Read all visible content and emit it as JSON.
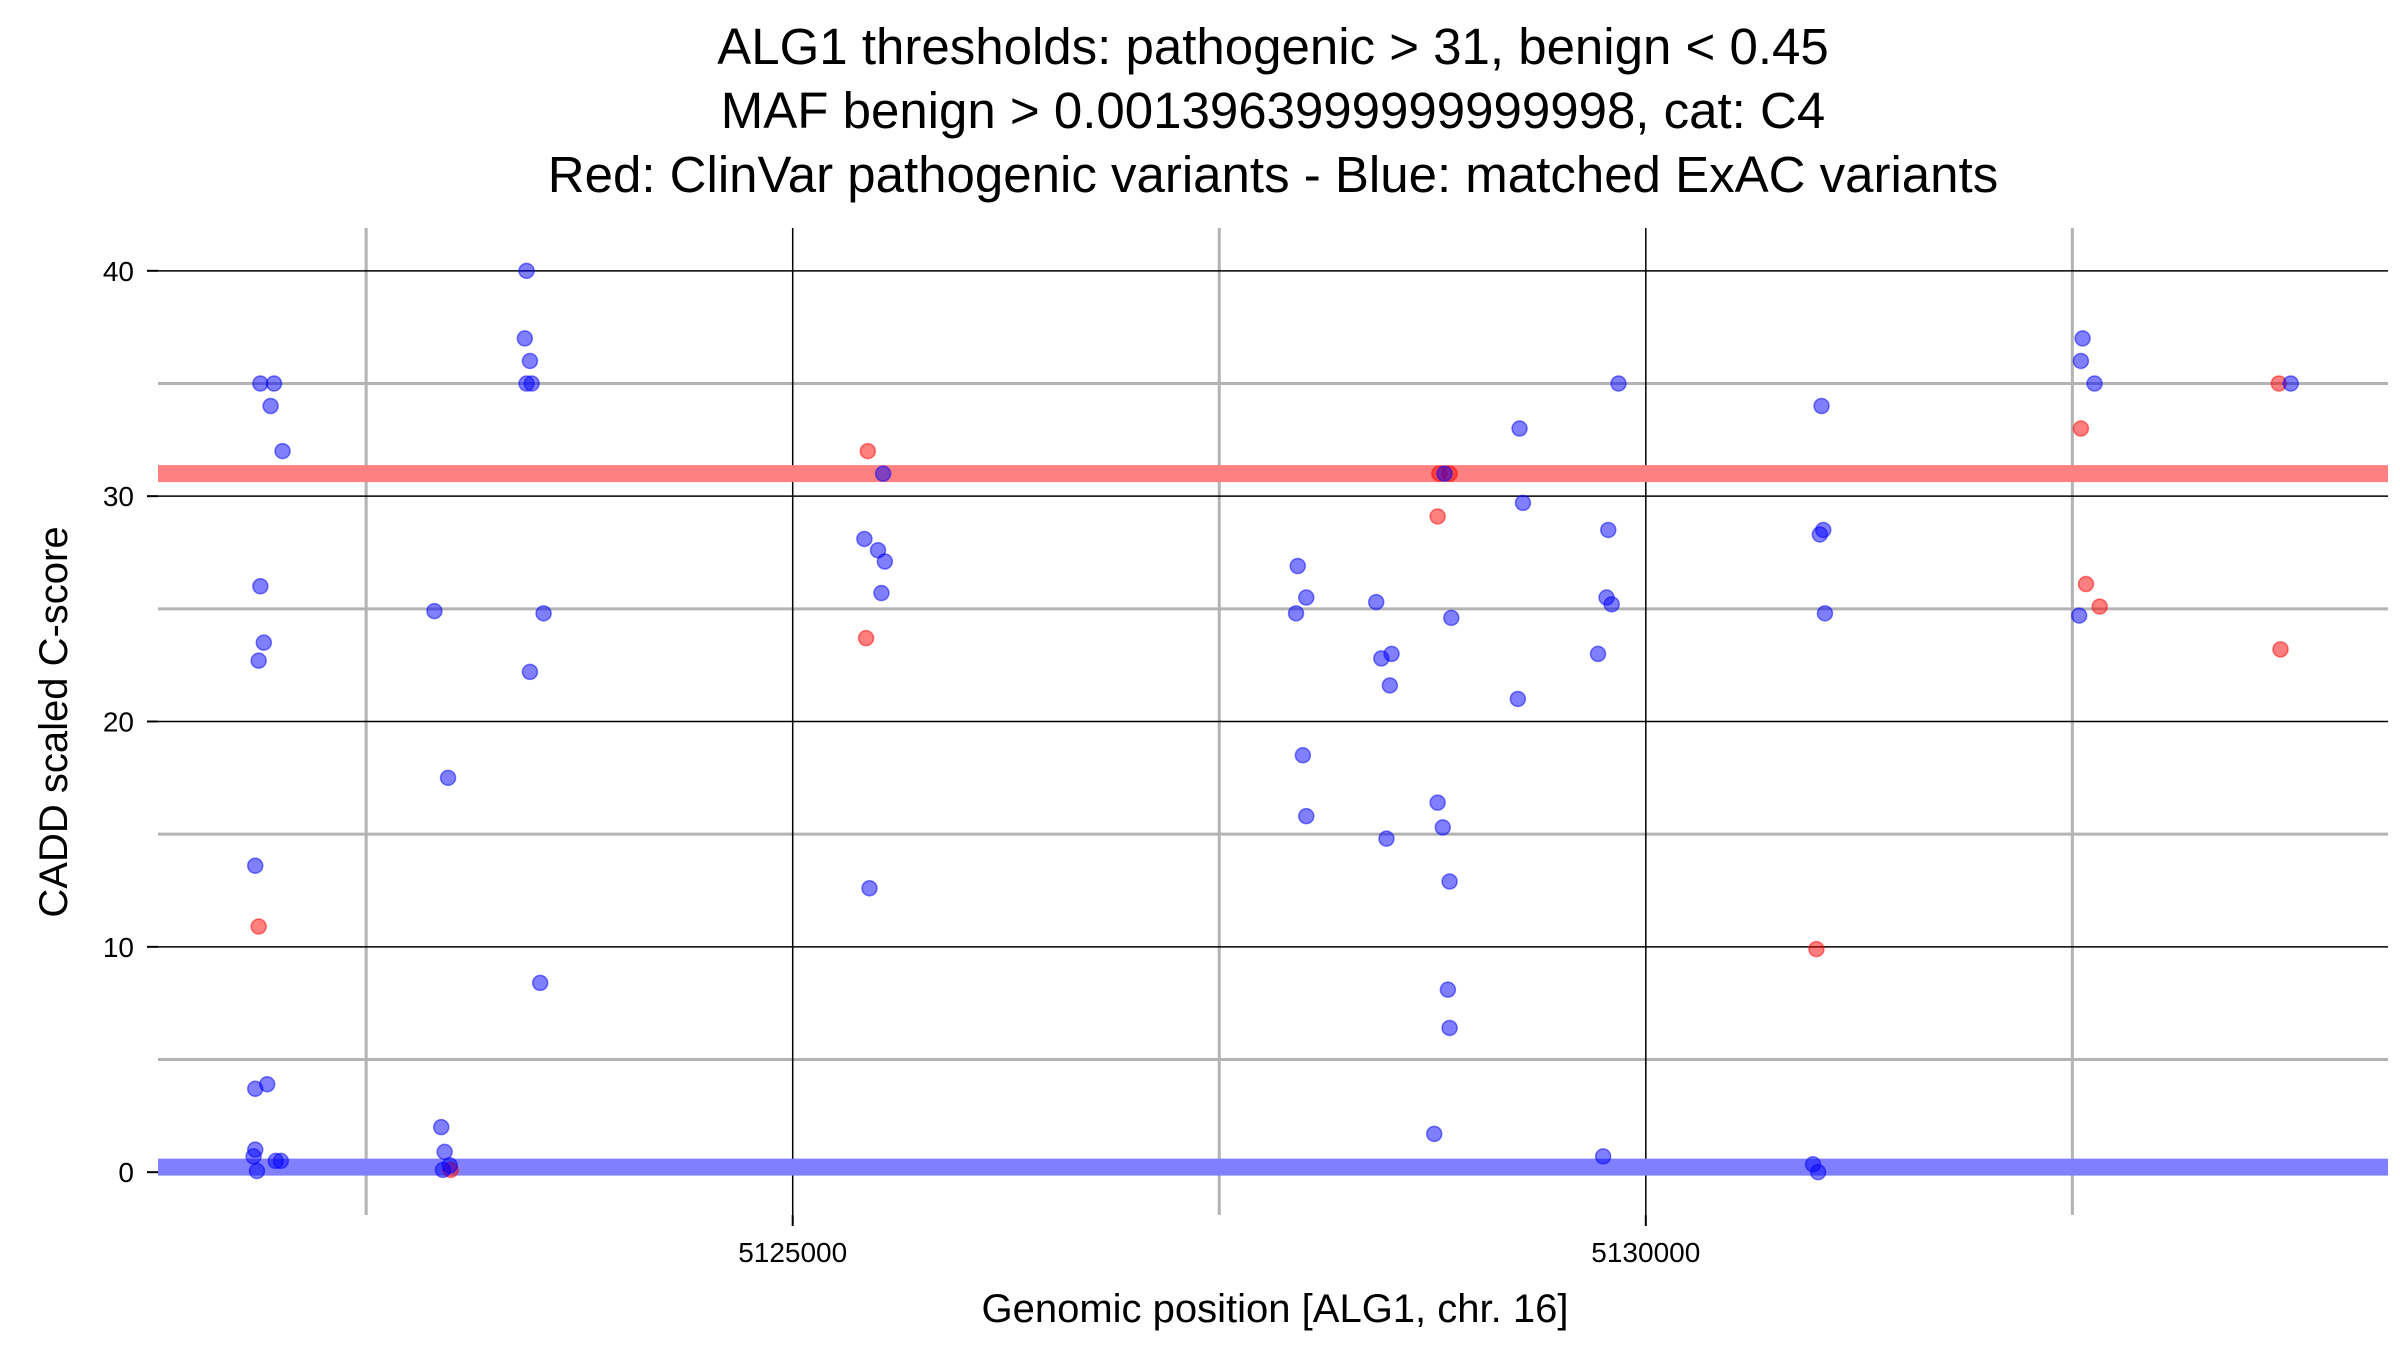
{
  "chart_data": {
    "type": "scatter",
    "title": [
      "ALG1 thresholds: pathogenic > 31, benign < 0.45",
      "MAF benign > 0.0013963999999999998, cat: C4",
      "Red: ClinVar pathogenic variants - Blue: matched ExAC variants"
    ],
    "xlabel": "Genomic position [ALG1, chr. 16]",
    "ylabel": "CADD scaled C-score",
    "xlim": [
      5121280,
      5134350
    ],
    "ylim": [
      -1.9,
      41.9
    ],
    "x_ticks": [
      5125000,
      5130000
    ],
    "x_tick_labels": [
      "5125000",
      "5130000"
    ],
    "x_minor_gridlines": [
      5122500,
      5127500,
      5132500
    ],
    "y_ticks": [
      0,
      10,
      20,
      30,
      40
    ],
    "y_tick_labels": [
      "0",
      "10",
      "20",
      "30",
      "40"
    ],
    "y_minor_gridlines": [
      5,
      15,
      25,
      35
    ],
    "grid": true,
    "colors": {
      "pathogenic": "#ff0000",
      "benign": "#0000ff",
      "threshold_pathogenic": "#ff8080",
      "threshold_benign": "#8080ff",
      "major_grid": "#000000",
      "minor_grid": "#b3b3b3"
    },
    "thresholds": {
      "pathogenic": 31,
      "benign": 0.45
    },
    "series": [
      {
        "name": "ClinVar pathogenic variants",
        "color": "#ff0000",
        "points": [
          [
            5121870,
            10.9
          ],
          [
            5122995,
            0.1
          ],
          [
            5125440,
            32.0
          ],
          [
            5125430,
            23.7
          ],
          [
            5128780,
            29.1
          ],
          [
            5128790,
            31.0
          ],
          [
            5128850,
            31.0
          ],
          [
            5131000,
            9.9
          ],
          [
            5132550,
            33.0
          ],
          [
            5132580,
            26.1
          ],
          [
            5132660,
            25.1
          ],
          [
            5133710,
            35.0
          ],
          [
            5133720,
            23.2
          ]
        ]
      },
      {
        "name": "matched ExAC variants",
        "color": "#0000ff",
        "points": [
          [
            5121880,
            35.0
          ],
          [
            5121960,
            35.0
          ],
          [
            5121940,
            34.0
          ],
          [
            5122010,
            32.0
          ],
          [
            5121880,
            26.0
          ],
          [
            5121900,
            23.5
          ],
          [
            5121870,
            22.7
          ],
          [
            5121850,
            13.6
          ],
          [
            5121920,
            3.9
          ],
          [
            5121850,
            3.7
          ],
          [
            5121850,
            1.0
          ],
          [
            5121840,
            0.7
          ],
          [
            5121860,
            0.05
          ],
          [
            5121970,
            0.5
          ],
          [
            5122000,
            0.5
          ],
          [
            5123440,
            40.0
          ],
          [
            5123430,
            37.0
          ],
          [
            5123460,
            36.0
          ],
          [
            5123440,
            35.0
          ],
          [
            5123470,
            35.0
          ],
          [
            5122900,
            24.9
          ],
          [
            5123540,
            24.8
          ],
          [
            5123460,
            22.2
          ],
          [
            5122980,
            17.5
          ],
          [
            5123520,
            8.4
          ],
          [
            5122940,
            2.0
          ],
          [
            5122960,
            0.9
          ],
          [
            5122990,
            0.3
          ],
          [
            5122950,
            0.1
          ],
          [
            5125530,
            31.0
          ],
          [
            5125420,
            28.1
          ],
          [
            5125500,
            27.6
          ],
          [
            5125540,
            27.1
          ],
          [
            5125520,
            25.7
          ],
          [
            5125450,
            12.6
          ],
          [
            5129840,
            35.0
          ],
          [
            5127960,
            26.9
          ],
          [
            5128010,
            25.5
          ],
          [
            5127950,
            24.8
          ],
          [
            5128420,
            25.3
          ],
          [
            5128450,
            22.8
          ],
          [
            5128510,
            23.0
          ],
          [
            5128500,
            21.6
          ],
          [
            5127990,
            18.5
          ],
          [
            5128010,
            15.8
          ],
          [
            5128480,
            14.8
          ],
          [
            5129260,
            33.0
          ],
          [
            5128820,
            31.0
          ],
          [
            5129280,
            29.7
          ],
          [
            5128860,
            24.6
          ],
          [
            5129250,
            21.0
          ],
          [
            5128780,
            16.4
          ],
          [
            5128810,
            15.3
          ],
          [
            5128850,
            12.9
          ],
          [
            5128840,
            8.1
          ],
          [
            5128850,
            6.4
          ],
          [
            5128760,
            1.7
          ],
          [
            5129780,
            28.5
          ],
          [
            5129770,
            25.5
          ],
          [
            5129800,
            25.2
          ],
          [
            5129720,
            23.0
          ],
          [
            5129750,
            0.7
          ],
          [
            5131030,
            34.0
          ],
          [
            5131020,
            28.3
          ],
          [
            5131040,
            28.5
          ],
          [
            5131050,
            24.8
          ],
          [
            5130980,
            0.35
          ],
          [
            5131010,
            0.0
          ],
          [
            5132560,
            37.0
          ],
          [
            5132550,
            36.0
          ],
          [
            5132630,
            35.0
          ],
          [
            5132540,
            24.7
          ],
          [
            5133780,
            35.0
          ]
        ]
      }
    ]
  }
}
